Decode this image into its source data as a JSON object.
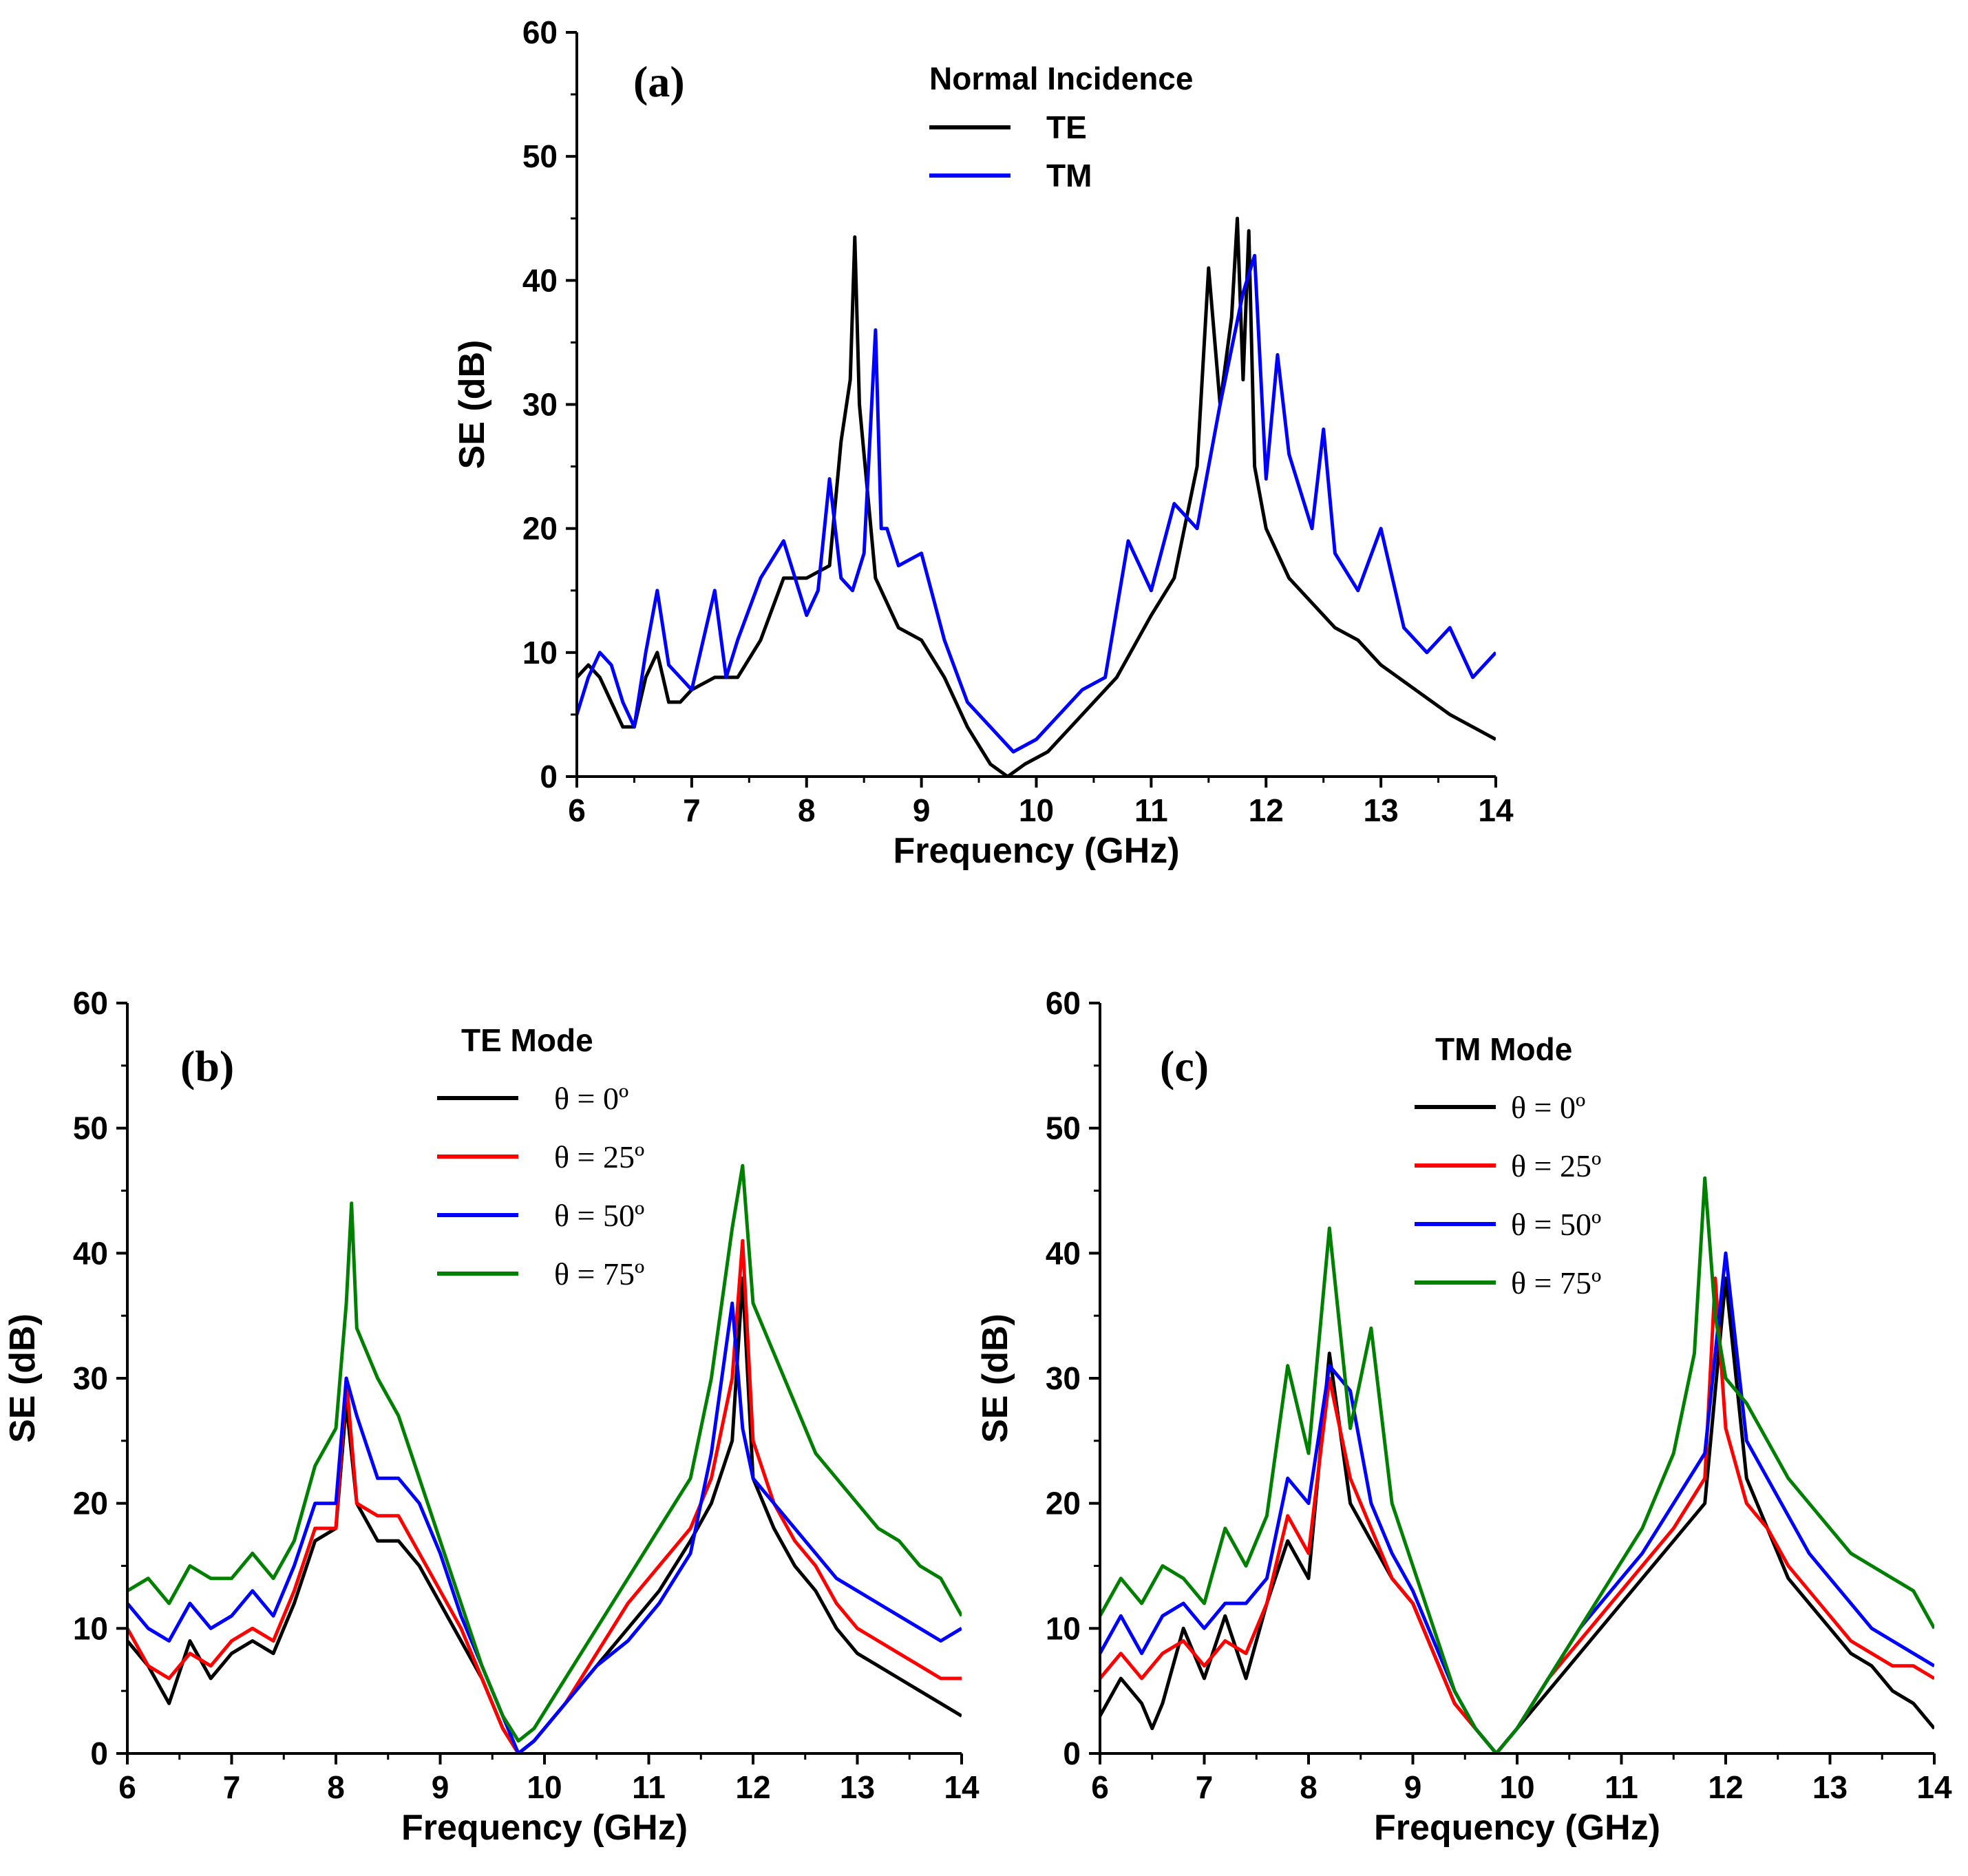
{
  "chart_data": [
    {
      "type": "line",
      "panel_label": "(a)",
      "xlabel": "Frequency (GHz)",
      "ylabel": "SE (dB)",
      "xlim": [
        6,
        14
      ],
      "ylim": [
        0,
        60
      ],
      "xticks": [
        "6",
        "7",
        "8",
        "9",
        "10",
        "11",
        "12",
        "13",
        "14"
      ],
      "yticks": [
        "0",
        "10",
        "20",
        "30",
        "40",
        "50",
        "60"
      ],
      "legend_title": "Normal Incidence",
      "legend_location": "top-center",
      "series": [
        {
          "name": "TE",
          "color": "#000000",
          "x": [
            6.0,
            6.1,
            6.2,
            6.3,
            6.4,
            6.5,
            6.6,
            6.7,
            6.8,
            6.9,
            7.0,
            7.2,
            7.4,
            7.6,
            7.8,
            8.0,
            8.2,
            8.3,
            8.38,
            8.42,
            8.46,
            8.6,
            8.8,
            9.0,
            9.2,
            9.4,
            9.6,
            9.75,
            9.9,
            10.1,
            10.4,
            10.7,
            11.0,
            11.2,
            11.4,
            11.5,
            11.6,
            11.7,
            11.75,
            11.8,
            11.85,
            11.9,
            12.0,
            12.2,
            12.4,
            12.6,
            12.8,
            13.0,
            13.3,
            13.6,
            13.8,
            14.0
          ],
          "y": [
            8,
            9,
            8,
            6,
            4,
            4,
            8,
            10,
            6,
            6,
            7,
            8,
            8,
            11,
            16,
            16,
            17,
            27,
            32,
            43.5,
            30,
            16,
            12,
            11,
            8,
            4,
            1,
            0,
            1,
            2,
            5,
            8,
            13,
            16,
            25,
            41,
            30,
            37,
            45,
            32,
            44,
            25,
            20,
            16,
            14,
            12,
            11,
            9,
            7,
            5,
            4,
            3
          ]
        },
        {
          "name": "TM",
          "color": "#0000ff",
          "x": [
            6.0,
            6.1,
            6.2,
            6.3,
            6.4,
            6.5,
            6.6,
            6.7,
            6.8,
            7.0,
            7.2,
            7.3,
            7.4,
            7.6,
            7.8,
            8.0,
            8.1,
            8.2,
            8.3,
            8.4,
            8.5,
            8.6,
            8.65,
            8.7,
            8.8,
            9.0,
            9.2,
            9.4,
            9.6,
            9.8,
            10.0,
            10.2,
            10.4,
            10.6,
            10.8,
            11.0,
            11.2,
            11.4,
            11.6,
            11.8,
            11.9,
            12.0,
            12.1,
            12.2,
            12.4,
            12.5,
            12.6,
            12.8,
            13.0,
            13.2,
            13.4,
            13.6,
            13.8,
            14.0
          ],
          "y": [
            5,
            8,
            10,
            9,
            6,
            4,
            10,
            15,
            9,
            7,
            15,
            8,
            11,
            16,
            19,
            13,
            15,
            24,
            16,
            15,
            18,
            36,
            20,
            20,
            17,
            18,
            11,
            6,
            4,
            2,
            3,
            5,
            7,
            8,
            19,
            15,
            22,
            20,
            30,
            39,
            42,
            24,
            34,
            26,
            20,
            28,
            18,
            15,
            20,
            12,
            10,
            12,
            8,
            10
          ]
        }
      ]
    },
    {
      "type": "line",
      "panel_label": "(b)",
      "xlabel": "Frequency (GHz)",
      "ylabel": "SE (dB)",
      "xlim": [
        6,
        14
      ],
      "ylim": [
        0,
        60
      ],
      "xticks": [
        "6",
        "7",
        "8",
        "9",
        "10",
        "11",
        "12",
        "13",
        "14"
      ],
      "yticks": [
        "0",
        "10",
        "20",
        "30",
        "40",
        "50",
        "60"
      ],
      "legend_title": "TE Mode",
      "legend_location": "top-center",
      "series": [
        {
          "name": "θ = 0º",
          "color": "#000000",
          "x": [
            6.0,
            6.2,
            6.4,
            6.6,
            6.8,
            7.0,
            7.2,
            7.4,
            7.6,
            7.8,
            8.0,
            8.1,
            8.2,
            8.4,
            8.6,
            8.8,
            9.0,
            9.2,
            9.4,
            9.6,
            9.75,
            9.9,
            10.2,
            10.5,
            10.8,
            11.1,
            11.4,
            11.6,
            11.8,
            11.9,
            12.0,
            12.2,
            12.4,
            12.6,
            12.8,
            13.0,
            13.2,
            13.4,
            13.6,
            13.8,
            14.0
          ],
          "y": [
            9,
            7,
            4,
            9,
            6,
            8,
            9,
            8,
            12,
            17,
            18,
            28,
            20,
            17,
            17,
            15,
            12,
            9,
            6,
            2,
            0,
            1,
            4,
            7,
            10,
            13,
            17,
            20,
            25,
            38,
            22,
            18,
            15,
            13,
            10,
            8,
            7,
            6,
            5,
            4,
            3
          ]
        },
        {
          "name": "θ = 25º",
          "color": "#ff0000",
          "x": [
            6.0,
            6.2,
            6.4,
            6.6,
            6.8,
            7.0,
            7.2,
            7.4,
            7.6,
            7.8,
            8.0,
            8.1,
            8.2,
            8.4,
            8.6,
            8.8,
            9.0,
            9.2,
            9.4,
            9.6,
            9.75,
            9.9,
            10.2,
            10.5,
            10.8,
            11.1,
            11.4,
            11.6,
            11.8,
            11.9,
            12.0,
            12.2,
            12.4,
            12.6,
            12.8,
            13.0,
            13.2,
            13.4,
            13.6,
            13.8,
            14.0
          ],
          "y": [
            10,
            7,
            6,
            8,
            7,
            9,
            10,
            9,
            13,
            18,
            18,
            30,
            20,
            19,
            19,
            16,
            13,
            10,
            6,
            2,
            0,
            1,
            4,
            8,
            12,
            15,
            18,
            22,
            30,
            41,
            25,
            20,
            17,
            15,
            12,
            10,
            9,
            8,
            7,
            6,
            6
          ]
        },
        {
          "name": "θ = 50º",
          "color": "#0000ff",
          "x": [
            6.0,
            6.2,
            6.4,
            6.6,
            6.8,
            7.0,
            7.2,
            7.4,
            7.6,
            7.8,
            8.0,
            8.1,
            8.2,
            8.4,
            8.6,
            8.8,
            9.0,
            9.2,
            9.4,
            9.6,
            9.75,
            9.9,
            10.2,
            10.5,
            10.8,
            11.1,
            11.4,
            11.6,
            11.8,
            11.9,
            12.0,
            12.2,
            12.4,
            12.6,
            12.8,
            13.0,
            13.2,
            13.4,
            13.6,
            13.8,
            14.0
          ],
          "y": [
            12,
            10,
            9,
            12,
            10,
            11,
            13,
            11,
            15,
            20,
            20,
            30,
            27,
            22,
            22,
            20,
            16,
            11,
            7,
            3,
            0,
            1,
            4,
            7,
            9,
            12,
            16,
            24,
            36,
            26,
            22,
            20,
            18,
            16,
            14,
            13,
            12,
            11,
            10,
            9,
            10
          ]
        },
        {
          "name": "θ = 75º",
          "color": "#008000",
          "x": [
            6.0,
            6.2,
            6.4,
            6.6,
            6.8,
            7.0,
            7.2,
            7.4,
            7.6,
            7.8,
            8.0,
            8.1,
            8.15,
            8.2,
            8.4,
            8.6,
            8.8,
            9.0,
            9.2,
            9.4,
            9.6,
            9.75,
            9.9,
            10.2,
            10.5,
            10.8,
            11.1,
            11.4,
            11.6,
            11.8,
            11.9,
            12.0,
            12.2,
            12.4,
            12.6,
            12.8,
            13.0,
            13.2,
            13.4,
            13.6,
            13.8,
            14.0
          ],
          "y": [
            13,
            14,
            12,
            15,
            14,
            14,
            16,
            14,
            17,
            23,
            26,
            36,
            44,
            34,
            30,
            27,
            22,
            17,
            12,
            7,
            3,
            1,
            2,
            6,
            10,
            14,
            18,
            22,
            30,
            42,
            47,
            36,
            32,
            28,
            24,
            22,
            20,
            18,
            17,
            15,
            14,
            11
          ]
        }
      ]
    },
    {
      "type": "line",
      "panel_label": "(c)",
      "xlabel": "Frequency (GHz)",
      "ylabel": "SE (dB)",
      "xlim": [
        6,
        14
      ],
      "ylim": [
        0,
        60
      ],
      "xticks": [
        "6",
        "7",
        "8",
        "9",
        "10",
        "11",
        "12",
        "13",
        "14"
      ],
      "yticks": [
        "0",
        "10",
        "20",
        "30",
        "40",
        "50",
        "60"
      ],
      "legend_title": "TM Mode",
      "legend_location": "top-center",
      "series": [
        {
          "name": "θ = 0º",
          "color": "#000000",
          "x": [
            6.0,
            6.2,
            6.4,
            6.5,
            6.6,
            6.8,
            7.0,
            7.2,
            7.4,
            7.6,
            7.8,
            8.0,
            8.2,
            8.4,
            8.6,
            8.8,
            9.0,
            9.2,
            9.4,
            9.6,
            9.8,
            10.0,
            10.3,
            10.6,
            10.9,
            11.2,
            11.5,
            11.8,
            12.0,
            12.2,
            12.4,
            12.6,
            12.8,
            13.0,
            13.2,
            13.4,
            13.6,
            13.8,
            14.0
          ],
          "y": [
            3,
            6,
            4,
            2,
            4,
            10,
            6,
            11,
            6,
            12,
            17,
            14,
            32,
            20,
            17,
            14,
            12,
            8,
            4,
            2,
            0,
            2,
            5,
            8,
            11,
            14,
            17,
            20,
            38,
            22,
            18,
            14,
            12,
            10,
            8,
            7,
            5,
            4,
            2
          ]
        },
        {
          "name": "θ = 25º",
          "color": "#ff0000",
          "x": [
            6.0,
            6.2,
            6.4,
            6.6,
            6.8,
            7.0,
            7.2,
            7.4,
            7.6,
            7.8,
            8.0,
            8.2,
            8.4,
            8.6,
            8.8,
            9.0,
            9.2,
            9.4,
            9.6,
            9.8,
            10.0,
            10.3,
            10.6,
            10.9,
            11.2,
            11.5,
            11.8,
            11.9,
            12.0,
            12.2,
            12.4,
            12.6,
            12.8,
            13.0,
            13.2,
            13.4,
            13.6,
            13.8,
            14.0
          ],
          "y": [
            6,
            8,
            6,
            8,
            9,
            7,
            9,
            8,
            12,
            19,
            16,
            30,
            22,
            18,
            14,
            12,
            8,
            4,
            2,
            0,
            2,
            6,
            9,
            12,
            15,
            18,
            22,
            38,
            26,
            20,
            18,
            15,
            13,
            11,
            9,
            8,
            7,
            7,
            6
          ]
        },
        {
          "name": "θ = 50º",
          "color": "#0000ff",
          "x": [
            6.0,
            6.2,
            6.4,
            6.6,
            6.8,
            7.0,
            7.2,
            7.4,
            7.6,
            7.8,
            8.0,
            8.2,
            8.4,
            8.6,
            8.8,
            9.0,
            9.2,
            9.4,
            9.6,
            9.8,
            10.0,
            10.3,
            10.6,
            10.9,
            11.2,
            11.5,
            11.8,
            12.0,
            12.2,
            12.4,
            12.6,
            12.8,
            13.0,
            13.2,
            13.4,
            13.6,
            13.8,
            14.0
          ],
          "y": [
            8,
            11,
            8,
            11,
            12,
            10,
            12,
            12,
            14,
            22,
            20,
            31,
            29,
            20,
            16,
            13,
            9,
            5,
            2,
            0,
            2,
            6,
            10,
            13,
            16,
            20,
            24,
            40,
            25,
            22,
            19,
            16,
            14,
            12,
            10,
            9,
            8,
            7
          ]
        },
        {
          "name": "θ = 75º",
          "color": "#008000",
          "x": [
            6.0,
            6.2,
            6.4,
            6.6,
            6.8,
            7.0,
            7.2,
            7.4,
            7.6,
            7.8,
            8.0,
            8.2,
            8.4,
            8.6,
            8.8,
            9.0,
            9.2,
            9.4,
            9.6,
            9.8,
            10.0,
            10.3,
            10.6,
            10.9,
            11.2,
            11.5,
            11.7,
            11.8,
            11.9,
            12.0,
            12.2,
            12.4,
            12.6,
            12.8,
            13.0,
            13.2,
            13.4,
            13.6,
            13.8,
            14.0
          ],
          "y": [
            11,
            14,
            12,
            15,
            14,
            12,
            18,
            15,
            19,
            31,
            24,
            42,
            26,
            34,
            20,
            15,
            10,
            5,
            2,
            0,
            2,
            6,
            10,
            14,
            18,
            24,
            32,
            46,
            35,
            30,
            28,
            25,
            22,
            20,
            18,
            16,
            15,
            14,
            13,
            10
          ]
        }
      ]
    }
  ]
}
